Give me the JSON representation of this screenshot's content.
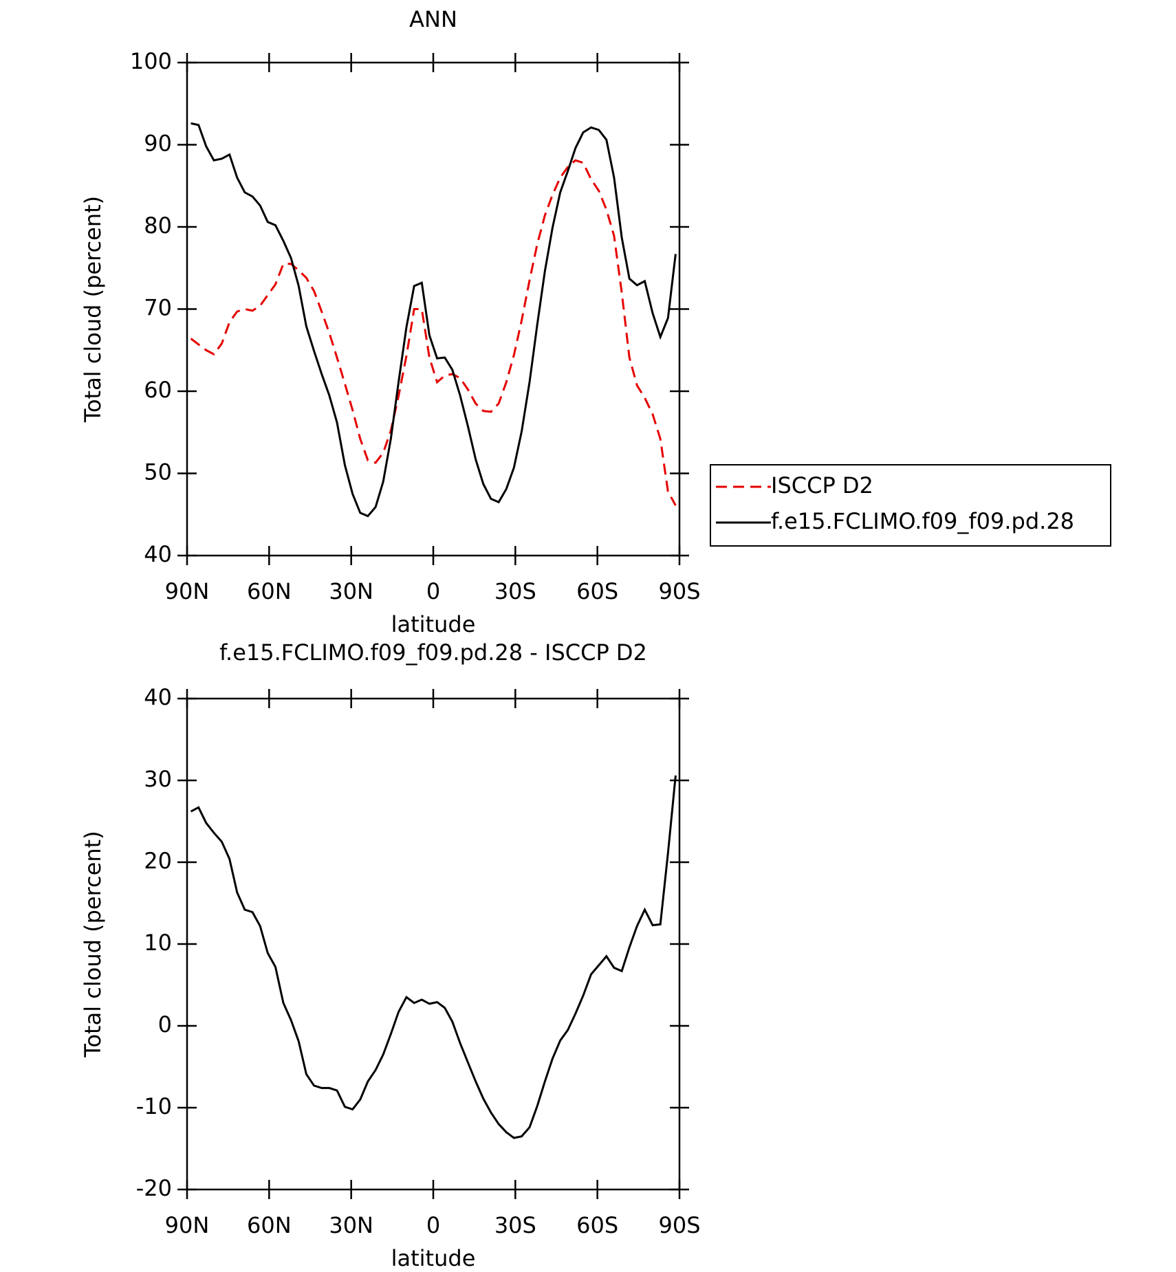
{
  "chart_data": [
    {
      "type": "line",
      "title": "ANN",
      "xlabel": "latitude",
      "ylabel": "Total cloud (percent)",
      "xlim": [
        90,
        -90
      ],
      "ylim": [
        40,
        100
      ],
      "xticks": [
        {
          "value": 90,
          "label": "90N"
        },
        {
          "value": 60,
          "label": "60N"
        },
        {
          "value": 30,
          "label": "30N"
        },
        0,
        {
          "value": -30,
          "label": "30S"
        },
        {
          "value": -60,
          "label": "60S"
        },
        {
          "value": -90,
          "label": "90S"
        }
      ],
      "yticks": [
        40,
        50,
        60,
        70,
        80,
        90,
        100
      ],
      "legend": "outside-right",
      "x": [
        88.6,
        85.8,
        83.0,
        80.2,
        77.3,
        74.5,
        71.7,
        68.9,
        66.1,
        63.3,
        60.5,
        57.7,
        54.8,
        52.0,
        49.2,
        46.4,
        43.6,
        40.8,
        38.0,
        35.2,
        32.3,
        29.5,
        26.7,
        23.9,
        21.1,
        18.3,
        15.5,
        12.7,
        9.8,
        7.0,
        4.2,
        1.4,
        -1.4,
        -4.2,
        -7.0,
        -9.8,
        -12.7,
        -15.5,
        -18.3,
        -21.1,
        -23.9,
        -26.7,
        -29.5,
        -32.3,
        -35.2,
        -38.0,
        -40.8,
        -43.6,
        -46.4,
        -49.2,
        -52.0,
        -54.8,
        -57.7,
        -60.5,
        -63.3,
        -66.1,
        -68.9,
        -71.7,
        -74.5,
        -77.3,
        -80.2,
        -83.0,
        -85.8,
        -88.6
      ],
      "series": [
        {
          "name": "ISCCP D2",
          "color": "#e60000",
          "dashed": true,
          "values": [
            66.4,
            65.7,
            65.0,
            64.5,
            65.8,
            68.4,
            69.7,
            70.0,
            69.8,
            70.4,
            71.7,
            73.0,
            75.5,
            75.5,
            74.7,
            73.8,
            72.2,
            69.7,
            67.1,
            64.1,
            60.9,
            57.7,
            54.2,
            51.6,
            51.3,
            52.5,
            55.2,
            59.4,
            64.3,
            70.0,
            70.0,
            64.1,
            61.1,
            61.9,
            62.1,
            61.6,
            60.2,
            58.5,
            57.6,
            57.5,
            58.5,
            61.1,
            64.4,
            68.6,
            73.5,
            77.9,
            81.4,
            83.9,
            86.0,
            87.3,
            88.1,
            87.8,
            85.8,
            84.4,
            82.1,
            78.9,
            72.0,
            64.1,
            60.7,
            59.2,
            57.2,
            54.2,
            47.8,
            46.1
          ]
        },
        {
          "name": "f.e15.FCLIMO.f09_f09.pd.28",
          "color": "#000000",
          "dashed": false,
          "values": [
            92.6,
            92.4,
            89.8,
            88.1,
            88.3,
            88.8,
            86.0,
            84.2,
            83.7,
            82.6,
            80.6,
            80.2,
            78.3,
            76.2,
            72.8,
            67.9,
            64.9,
            62.1,
            59.5,
            56.2,
            51.0,
            47.5,
            45.2,
            44.8,
            45.9,
            49.0,
            54.2,
            61.1,
            67.8,
            72.8,
            73.2,
            66.8,
            64.0,
            64.1,
            62.6,
            59.5,
            55.7,
            51.7,
            48.7,
            46.9,
            46.5,
            48.1,
            50.7,
            55.1,
            61.1,
            68.1,
            74.6,
            79.9,
            84.2,
            86.8,
            89.6,
            91.5,
            92.1,
            91.8,
            90.6,
            86.0,
            78.7,
            73.7,
            72.9,
            73.4,
            69.5,
            66.6,
            68.9,
            76.7
          ]
        }
      ]
    },
    {
      "type": "line",
      "title": "f.e15.FCLIMO.f09_f09.pd.28 - ISCCP D2",
      "xlabel": "latitude",
      "ylabel": "Total cloud (percent)",
      "xlim": [
        90,
        -90
      ],
      "ylim": [
        -20,
        40
      ],
      "xticks": [
        {
          "value": 90,
          "label": "90N"
        },
        {
          "value": 60,
          "label": "60N"
        },
        {
          "value": 30,
          "label": "30N"
        },
        0,
        {
          "value": -30,
          "label": "30S"
        },
        {
          "value": -60,
          "label": "60S"
        },
        {
          "value": -90,
          "label": "90S"
        }
      ],
      "yticks": [
        -20,
        -10,
        0,
        10,
        20,
        30,
        40
      ],
      "x": [
        88.6,
        85.8,
        83.0,
        80.2,
        77.3,
        74.5,
        71.7,
        68.9,
        66.1,
        63.3,
        60.5,
        57.7,
        54.8,
        52.0,
        49.2,
        46.4,
        43.6,
        40.8,
        38.0,
        35.2,
        32.3,
        29.5,
        26.7,
        23.9,
        21.1,
        18.3,
        15.5,
        12.7,
        9.8,
        7.0,
        4.2,
        1.4,
        -1.4,
        -4.2,
        -7.0,
        -9.8,
        -12.7,
        -15.5,
        -18.3,
        -21.1,
        -23.9,
        -26.7,
        -29.5,
        -32.3,
        -35.2,
        -38.0,
        -40.8,
        -43.6,
        -46.4,
        -49.2,
        -52.0,
        -54.8,
        -57.7,
        -60.5,
        -63.3,
        -66.1,
        -68.9,
        -71.7,
        -74.5,
        -77.3,
        -80.2,
        -83.0,
        -85.8,
        -88.6
      ],
      "series": [
        {
          "color": "#000000",
          "dashed": false,
          "values": [
            26.2,
            26.7,
            24.8,
            23.6,
            22.5,
            20.4,
            16.3,
            14.2,
            13.9,
            12.2,
            8.9,
            7.2,
            2.8,
            0.7,
            -1.9,
            -5.9,
            -7.3,
            -7.6,
            -7.6,
            -7.9,
            -9.9,
            -10.2,
            -9.0,
            -6.8,
            -5.4,
            -3.5,
            -1.0,
            1.7,
            3.5,
            2.8,
            3.2,
            2.7,
            2.9,
            2.2,
            0.5,
            -2.1,
            -4.5,
            -6.8,
            -8.9,
            -10.6,
            -12.0,
            -13.0,
            -13.7,
            -13.5,
            -12.4,
            -9.8,
            -6.8,
            -4.0,
            -1.8,
            -0.5,
            1.5,
            3.7,
            6.3,
            7.4,
            8.5,
            7.1,
            6.7,
            9.6,
            12.2,
            14.2,
            12.3,
            12.4,
            21.1,
            30.6
          ]
        }
      ]
    }
  ]
}
